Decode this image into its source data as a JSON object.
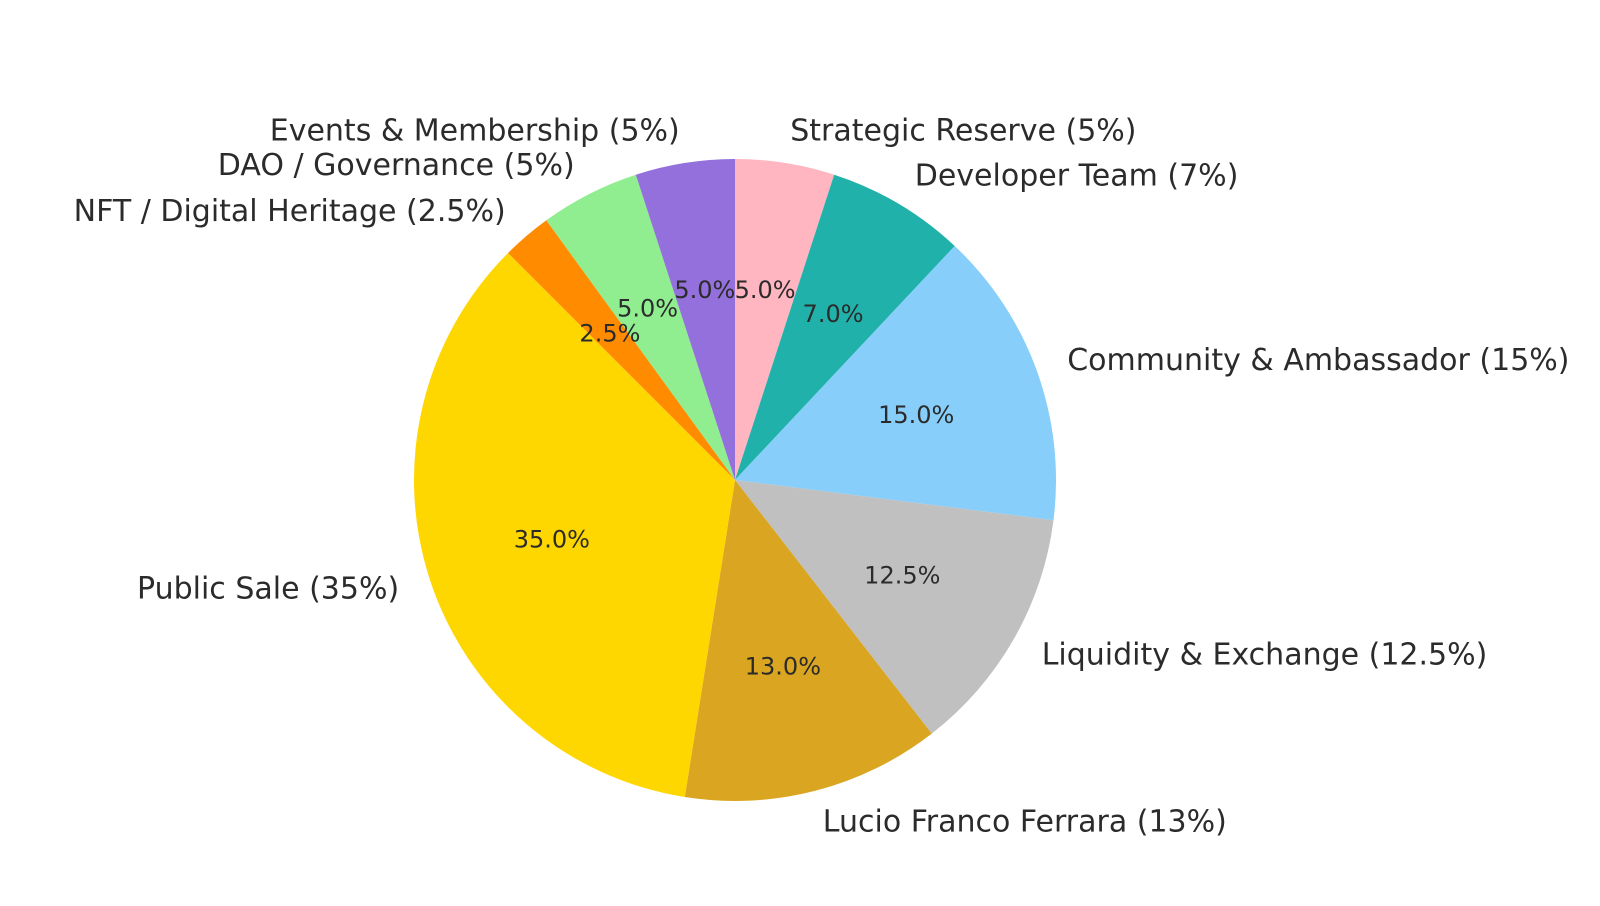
{
  "chart_data": {
    "type": "pie",
    "start_angle_deg": 90,
    "direction": "clockwise",
    "slices": [
      {
        "label": "Strategic Reserve (5%)",
        "value": 5.0,
        "pct_text": "5.0%",
        "color": "#FFB6C1"
      },
      {
        "label": "Developer Team (7%)",
        "value": 7.0,
        "pct_text": "7.0%",
        "color": "#20B2AA"
      },
      {
        "label": "Community & Ambassador (15%)",
        "value": 15.0,
        "pct_text": "15.0%",
        "color": "#87CEFA"
      },
      {
        "label": "Liquidity & Exchange (12.5%)",
        "value": 12.5,
        "pct_text": "12.5%",
        "color": "#C0C0C0"
      },
      {
        "label": "Lucio Franco Ferrara (13%)",
        "value": 13.0,
        "pct_text": "13.0%",
        "color": "#DAA520"
      },
      {
        "label": "Public Sale (35%)",
        "value": 35.0,
        "pct_text": "35.0%",
        "color": "#FFD700"
      },
      {
        "label": "NFT / Digital Heritage (2.5%)",
        "value": 2.5,
        "pct_text": "2.5%",
        "color": "#FF8C00"
      },
      {
        "label": "DAO / Governance (5%)",
        "value": 5.0,
        "pct_text": "5.0%",
        "color": "#90EE90"
      },
      {
        "label": "Events & Membership (5%)",
        "value": 5.0,
        "pct_text": "5.0%",
        "color": "#9370DB"
      }
    ]
  }
}
